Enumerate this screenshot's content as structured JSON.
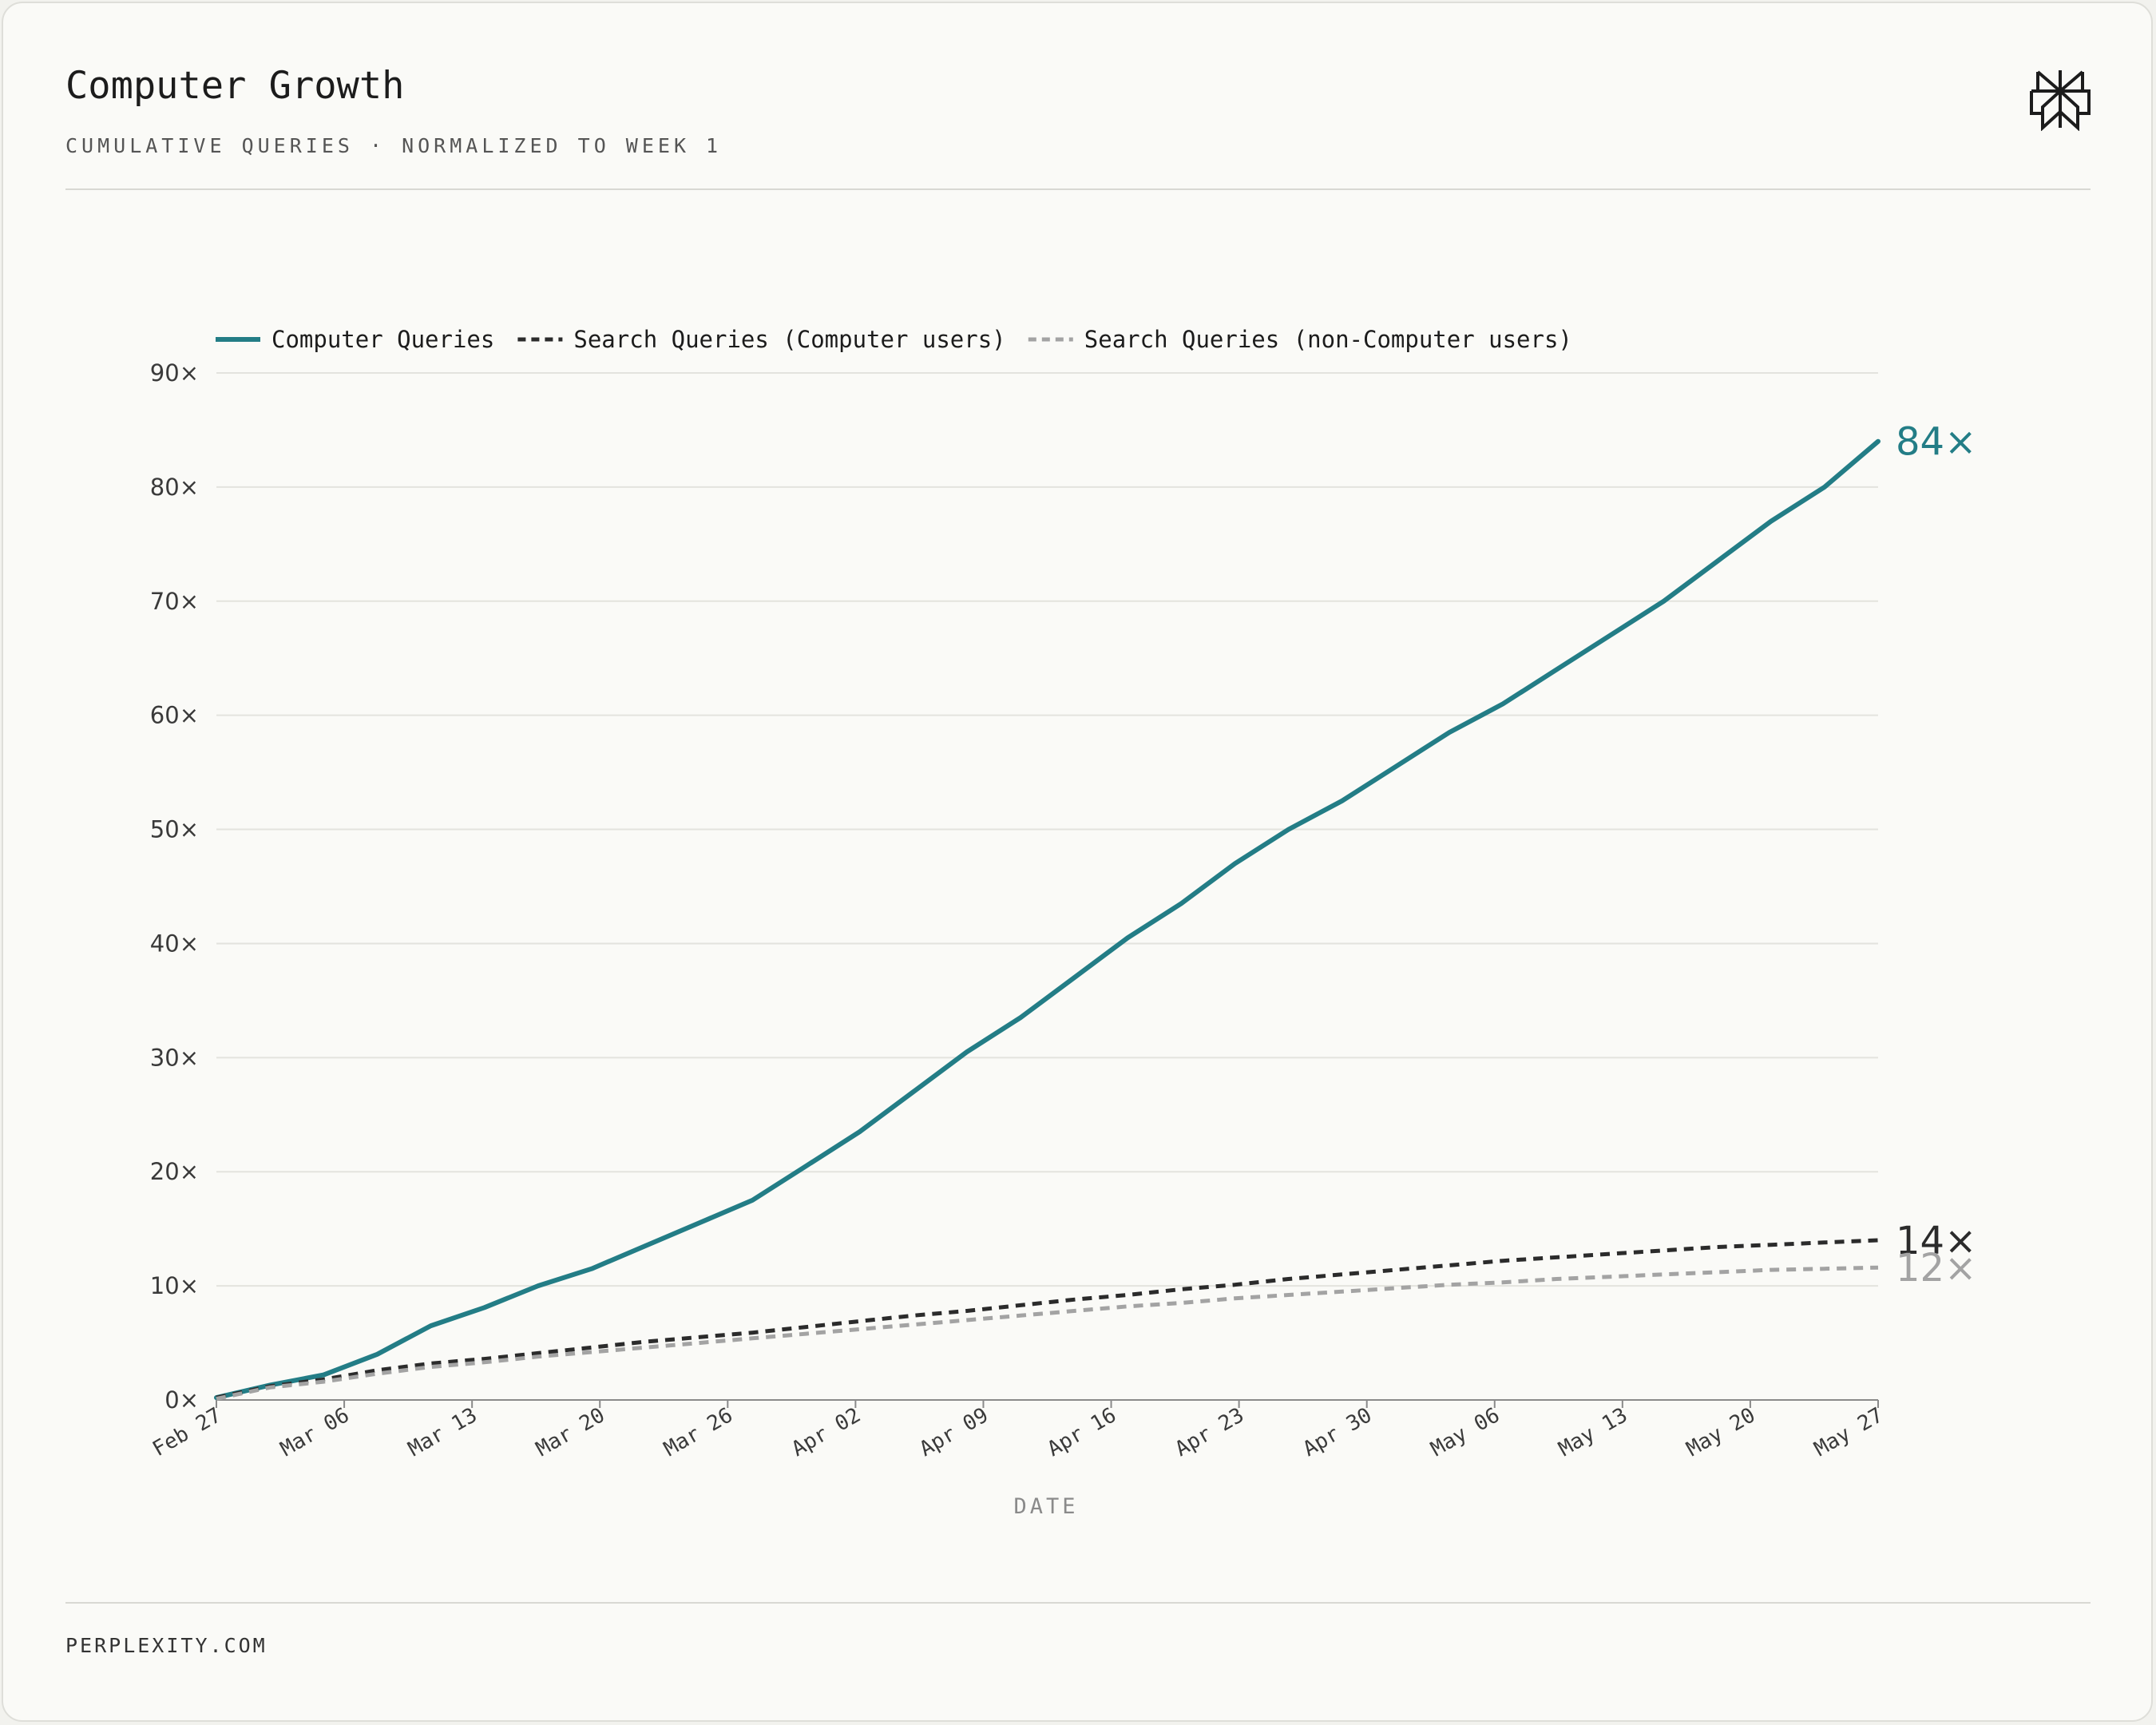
{
  "header": {
    "title": "Computer Growth",
    "subtitle": "CUMULATIVE QUERIES · NORMALIZED TO WEEK 1"
  },
  "footer": {
    "text": "PERPLEXITY.COM"
  },
  "logo": {
    "icon": "perplexity-logo-icon"
  },
  "chart_data": {
    "type": "line",
    "title": "",
    "xlabel": "DATE",
    "ylabel": "",
    "ylim": [
      0,
      90
    ],
    "y_ticks": [
      0,
      10,
      20,
      30,
      40,
      50,
      60,
      70,
      80,
      90
    ],
    "y_tick_suffix": "×",
    "x_ticks": [
      "Feb 27",
      "Mar 06",
      "Mar 13",
      "Mar 20",
      "Mar 26",
      "Apr 02",
      "Apr 09",
      "Apr 16",
      "Apr 23",
      "Apr 30",
      "May 06",
      "May 13",
      "May 20",
      "May 27"
    ],
    "grid": "horizontal",
    "legend_position": "top-left",
    "series": [
      {
        "name": "Computer Queries",
        "color": "#237d86",
        "style": "solid",
        "end_label": "84×",
        "values": [
          0.2,
          1.3,
          2.2,
          4.0,
          6.5,
          8.1,
          10.0,
          11.5,
          13.5,
          15.5,
          17.5,
          20.5,
          23.5,
          27.0,
          30.5,
          33.5,
          37.0,
          40.5,
          43.5,
          47.0,
          50.0,
          52.5,
          55.5,
          58.5,
          61.0,
          64.0,
          67.0,
          70.0,
          73.5,
          77.0,
          80.0,
          84.0
        ]
      },
      {
        "name": "Search Queries (Computer users)",
        "color": "#2b2b2b",
        "style": "dashed",
        "end_label": "14×",
        "values": [
          0.2,
          1.2,
          1.8,
          2.6,
          3.2,
          3.6,
          4.1,
          4.6,
          5.1,
          5.5,
          5.9,
          6.4,
          6.9,
          7.4,
          7.8,
          8.3,
          8.8,
          9.2,
          9.7,
          10.1,
          10.6,
          11.0,
          11.4,
          11.8,
          12.2,
          12.5,
          12.8,
          13.1,
          13.4,
          13.6,
          13.8,
          14.0
        ]
      },
      {
        "name": "Search Queries (non-Computer users)",
        "color": "#a3a3a3",
        "style": "dashed",
        "end_label": "12×",
        "values": [
          0.1,
          1.1,
          1.6,
          2.3,
          2.9,
          3.3,
          3.8,
          4.2,
          4.6,
          5.0,
          5.4,
          5.8,
          6.2,
          6.6,
          7.0,
          7.4,
          7.8,
          8.2,
          8.5,
          8.9,
          9.2,
          9.5,
          9.8,
          10.1,
          10.3,
          10.6,
          10.8,
          11.0,
          11.2,
          11.4,
          11.5,
          11.6
        ]
      }
    ]
  }
}
